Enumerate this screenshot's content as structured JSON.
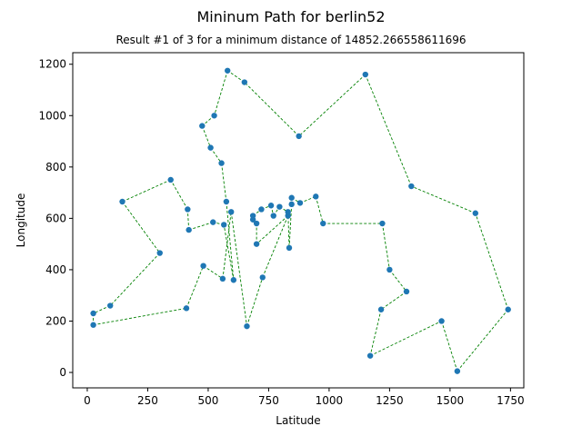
{
  "chart_data": {
    "type": "scatter",
    "title": "Mininum Path for berlin52",
    "subtitle": "Result #1 of 3 for a minimum distance of 14852.266558611696",
    "xlabel": "Latitude",
    "ylabel": "Longitude",
    "xlim": [
      -60,
      1805
    ],
    "ylim": [
      -60,
      1245
    ],
    "xticks": [
      0,
      250,
      500,
      750,
      1000,
      1250,
      1500,
      1750
    ],
    "yticks": [
      0,
      200,
      400,
      600,
      800,
      1000,
      1200
    ],
    "grid": false,
    "colors": {
      "point": "#1f77b4",
      "path": "#008000"
    },
    "x": [
      565,
      25,
      345,
      945,
      845,
      880,
      25,
      525,
      580,
      650,
      1605,
      1220,
      1465,
      1530,
      845,
      725,
      145,
      415,
      510,
      560,
      300,
      520,
      480,
      835,
      975,
      1215,
      1320,
      1250,
      660,
      410,
      420,
      575,
      1150,
      700,
      685,
      685,
      770,
      795,
      720,
      760,
      475,
      95,
      875,
      700,
      555,
      830,
      1170,
      830,
      605,
      595,
      1340,
      1740
    ],
    "y": [
      575,
      185,
      750,
      685,
      655,
      660,
      230,
      1000,
      1175,
      1130,
      620,
      580,
      200,
      5,
      680,
      370,
      665,
      635,
      875,
      365,
      465,
      585,
      415,
      485,
      580,
      245,
      315,
      400,
      180,
      250,
      555,
      665,
      1160,
      580,
      595,
      610,
      610,
      645,
      635,
      650,
      960,
      260,
      920,
      500,
      815,
      610,
      65,
      625,
      360,
      625,
      725,
      245
    ],
    "path": [
      1,
      22,
      31,
      18,
      3,
      17,
      21,
      42,
      7,
      2,
      30,
      23,
      20,
      50,
      29,
      16,
      46,
      44,
      34,
      35,
      36,
      39,
      40,
      37,
      38,
      48,
      24,
      5,
      15,
      6,
      4,
      25,
      12,
      28,
      27,
      26,
      47,
      13,
      14,
      52,
      11,
      51,
      33,
      43,
      10,
      9,
      8,
      41,
      19,
      45,
      32,
      49,
      1
    ]
  }
}
